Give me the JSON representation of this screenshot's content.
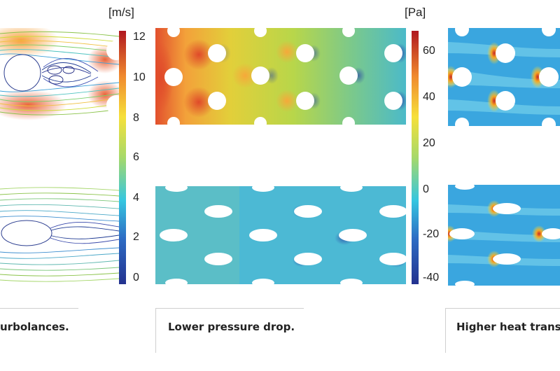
{
  "colorbars": [
    {
      "unit": "[m/s]",
      "ticks": [
        "12",
        "10",
        "8",
        "6",
        "4",
        "2",
        "0"
      ]
    },
    {
      "unit": "[Pa]",
      "ticks": [
        "60",
        "40",
        "20",
        "0",
        "-20",
        "-40"
      ]
    }
  ],
  "captions": {
    "left": "urbolances.",
    "middle": "Lower pressure drop.",
    "right": "Higher heat transfe"
  },
  "colors": {
    "jet_low": "#23328f",
    "jet_mid": "#35c6e0",
    "jet_high": "#b0171f"
  }
}
